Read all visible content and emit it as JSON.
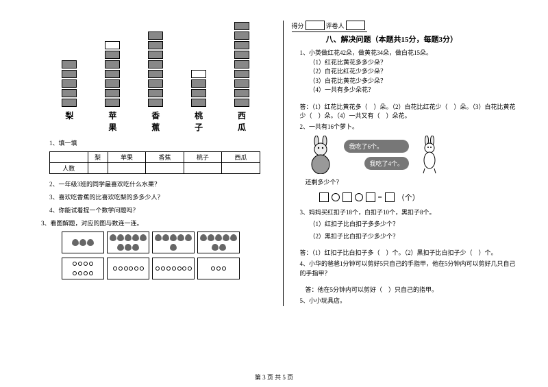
{
  "left": {
    "bars": {
      "labels": [
        "梨",
        "苹果",
        "香蕉",
        "桃子",
        "西瓜"
      ],
      "totals": [
        5,
        7,
        8,
        4,
        9
      ],
      "filled": [
        5,
        6,
        8,
        3,
        9
      ]
    },
    "q1_title": "1、填一填",
    "table_row_label": "人数",
    "q2": "2、一年级3班的同学最喜欢吃什么水果？",
    "q3": "3、喜欢吃香蕉的比喜欢吃梨的多多少人？",
    "q4": "4、你能试着提一个数学问题吗？",
    "q5": "3、看图解题，对应的图与数连一连。"
  },
  "right": {
    "score_label1": "得分",
    "score_label2": "评卷人",
    "section_title": "八、解决问题（本题共15分，每题3分）",
    "p1": "1、小英做红花42朵，做黄花34朵，做白花15朵。",
    "p1_1": "（1）红花比黄花多多少朵？",
    "p1_2": "（2）白花比红花少多少朵？",
    "p1_3": "（3）白花比黄花少多少朵？",
    "p1_4": "（4）一共有多少朵花？",
    "ans1": "答：（1）红花比黄花多（　）朵。（2）白花比红花少（　）朵。（3）白花比黄花少（　）朵。（4）一共又有（　）朵花。",
    "p2": "2、一共有16个萝卜。",
    "bubble1": "我吃了6个。",
    "bubble2": "我吃了4个。",
    "p2_q": "还剩多少个？",
    "eq_unit": "（个）",
    "p3": "3、妈妈买红扣子18个，白扣子10个，黑扣子8个。",
    "p3_1": "（1）红扣子比白扣子多多少个？",
    "p3_2": "（2）黑扣子比白扣子少多少个？",
    "ans3": "答：（1）红扣子比白扣子多（　）个。（2）黑扣子比白扣子少（　）个。",
    "p4": "4、小华的爸爸1分钟可以剪好5只自己的手指甲，他在5分钟内可以剪好几只自己的手指甲？",
    "ans4": "答：他在5分钟内可以剪好（　）只自己的指甲。",
    "p5": "5、小小玩具店。"
  },
  "footer": "第 3 页 共 5 页"
}
